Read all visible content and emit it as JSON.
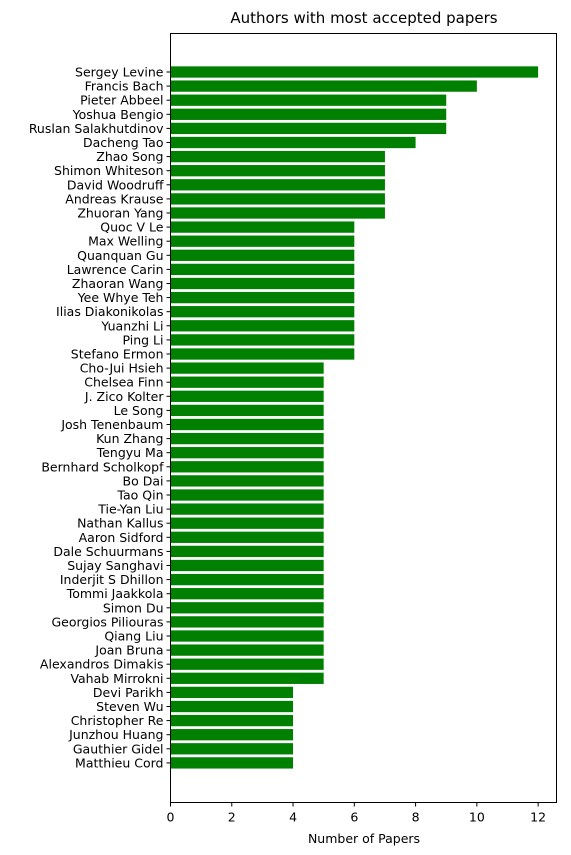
{
  "chart_data": {
    "type": "bar",
    "orientation": "horizontal",
    "title": "Authors with most accepted papers",
    "xlabel": "Number of Papers",
    "ylabel": "",
    "xlim": [
      0,
      12.6
    ],
    "xticks": [
      0,
      2,
      4,
      6,
      8,
      10,
      12
    ],
    "grid": false,
    "bar_color": "#008000",
    "categories": [
      "Sergey Levine",
      "Francis Bach",
      "Pieter Abbeel",
      "Yoshua Bengio",
      "Ruslan Salakhutdinov",
      "Dacheng Tao",
      "Zhao Song",
      "Shimon Whiteson",
      "David Woodruff",
      "Andreas Krause",
      "Zhuoran Yang",
      "Quoc V Le",
      "Max Welling",
      "Quanquan Gu",
      "Lawrence Carin",
      "Zhaoran Wang",
      "Yee Whye Teh",
      "Ilias Diakonikolas",
      "Yuanzhi Li",
      "Ping Li",
      "Stefano Ermon",
      "Cho-Jui Hsieh",
      "Chelsea Finn",
      "J. Zico Kolter",
      "Le Song",
      "Josh Tenenbaum",
      "Kun Zhang",
      "Tengyu Ma",
      "Bernhard Scholkopf",
      "Bo Dai",
      "Tao Qin",
      "Tie-Yan Liu",
      "Nathan Kallus",
      "Aaron Sidford",
      "Dale Schuurmans",
      "Sujay Sanghavi",
      "Inderjit S Dhillon",
      "Tommi Jaakkola",
      "Simon Du",
      "Georgios Piliouras",
      "Qiang Liu",
      "Joan Bruna",
      "Alexandros Dimakis",
      "Vahab Mirrokni",
      "Devi Parikh",
      "Steven Wu",
      "Christopher Re",
      "Junzhou Huang",
      "Gauthier Gidel",
      "Matthieu Cord"
    ],
    "values": [
      12,
      10,
      9,
      9,
      9,
      8,
      7,
      7,
      7,
      7,
      7,
      6,
      6,
      6,
      6,
      6,
      6,
      6,
      6,
      6,
      6,
      5,
      5,
      5,
      5,
      5,
      5,
      5,
      5,
      5,
      5,
      5,
      5,
      5,
      5,
      5,
      5,
      5,
      5,
      5,
      5,
      5,
      5,
      5,
      4,
      4,
      4,
      4,
      4,
      4
    ]
  }
}
